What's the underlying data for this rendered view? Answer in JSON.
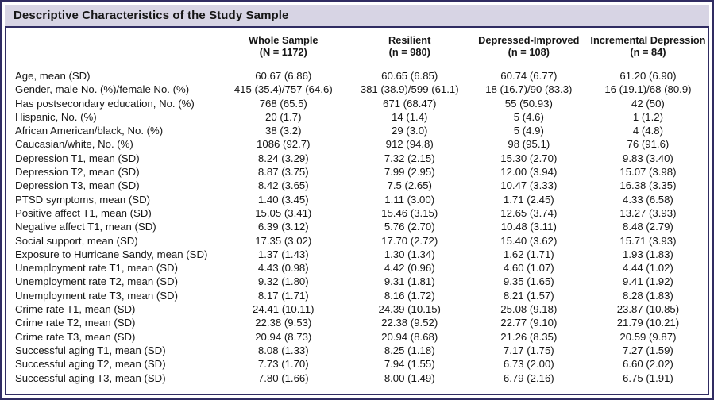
{
  "title": "Descriptive Characteristics of the Study Sample",
  "colors": {
    "border": "#302c62",
    "title_bg": "#d7d4e4",
    "text": "#161616"
  },
  "table": {
    "columns": [
      {
        "label": "Whole Sample",
        "sub": "(N = 1172)"
      },
      {
        "label": "Resilient",
        "sub": "(n = 980)"
      },
      {
        "label": "Depressed-Improved",
        "sub": "(n = 108)"
      },
      {
        "label": "Incremental Depression",
        "sub": "(n = 84)"
      }
    ],
    "rows": [
      {
        "label": "Age, mean (SD)",
        "values": [
          "60.67 (6.86)",
          "60.65 (6.85)",
          "60.74 (6.77)",
          "61.20 (6.90)"
        ]
      },
      {
        "label": "Gender, male No. (%)/female No. (%)",
        "values": [
          "415 (35.4)/757 (64.6)",
          "381 (38.9)/599 (61.1)",
          "18 (16.7)/90 (83.3)",
          "16 (19.1)/68 (80.9)"
        ]
      },
      {
        "label": "Has postsecondary education, No. (%)",
        "values": [
          "768 (65.5)",
          "671 (68.47)",
          "55 (50.93)",
          "42 (50)"
        ]
      },
      {
        "label": "Hispanic, No. (%)",
        "values": [
          "20 (1.7)",
          "14 (1.4)",
          "5 (4.6)",
          "1 (1.2)"
        ]
      },
      {
        "label": "African American/black, No. (%)",
        "values": [
          "38 (3.2)",
          "29 (3.0)",
          "5 (4.9)",
          "4 (4.8)"
        ]
      },
      {
        "label": "Caucasian/white, No. (%)",
        "values": [
          "1086 (92.7)",
          "912 (94.8)",
          "98 (95.1)",
          "76 (91.6)"
        ]
      },
      {
        "label": "Depression T1, mean (SD)",
        "values": [
          "8.24 (3.29)",
          "7.32 (2.15)",
          "15.30 (2.70)",
          "9.83 (3.40)"
        ]
      },
      {
        "label": "Depression T2, mean (SD)",
        "values": [
          "8.87 (3.75)",
          "7.99 (2.95)",
          "12.00 (3.94)",
          "15.07 (3.98)"
        ]
      },
      {
        "label": "Depression T3, mean (SD)",
        "values": [
          "8.42 (3.65)",
          "7.5 (2.65)",
          "10.47 (3.33)",
          "16.38 (3.35)"
        ]
      },
      {
        "label": "PTSD symptoms, mean (SD)",
        "values": [
          "1.40 (3.45)",
          "1.11 (3.00)",
          "1.71 (2.45)",
          "4.33 (6.58)"
        ]
      },
      {
        "label": "Positive affect T1, mean (SD)",
        "values": [
          "15.05 (3.41)",
          "15.46 (3.15)",
          "12.65 (3.74)",
          "13.27 (3.93)"
        ]
      },
      {
        "label": "Negative affect T1, mean (SD)",
        "values": [
          "6.39 (3.12)",
          "5.76 (2.70)",
          "10.48 (3.11)",
          "8.48 (2.79)"
        ]
      },
      {
        "label": "Social support, mean (SD)",
        "values": [
          "17.35 (3.02)",
          "17.70 (2.72)",
          "15.40 (3.62)",
          "15.71 (3.93)"
        ]
      },
      {
        "label": "Exposure to Hurricane Sandy, mean (SD)",
        "values": [
          "1.37 (1.43)",
          "1.30 (1.34)",
          "1.62 (1.71)",
          "1.93 (1.83)"
        ]
      },
      {
        "label": "Unemployment rate T1, mean (SD)",
        "values": [
          "4.43 (0.98)",
          "4.42 (0.96)",
          "4.60 (1.07)",
          "4.44 (1.02)"
        ]
      },
      {
        "label": "Unemployment rate T2, mean (SD)",
        "values": [
          "9.32 (1.80)",
          "9.31 (1.81)",
          "9.35 (1.65)",
          "9.41 (1.92)"
        ]
      },
      {
        "label": "Unemployment rate T3, mean (SD)",
        "values": [
          "8.17 (1.71)",
          "8.16 (1.72)",
          "8.21 (1.57)",
          "8.28 (1.83)"
        ]
      },
      {
        "label": "Crime rate T1, mean (SD)",
        "values": [
          "24.41 (10.11)",
          "24.39 (10.15)",
          "25.08 (9.18)",
          "23.87 (10.85)"
        ]
      },
      {
        "label": "Crime rate T2, mean (SD)",
        "values": [
          "22.38 (9.53)",
          "22.38 (9.52)",
          "22.77 (9.10)",
          "21.79 (10.21)"
        ]
      },
      {
        "label": "Crime rate T3, mean (SD)",
        "values": [
          "20.94 (8.73)",
          "20.94 (8.68)",
          "21.26 (8.35)",
          "20.59 (9.87)"
        ]
      },
      {
        "label": "Successful aging T1, mean (SD)",
        "values": [
          "8.08 (1.33)",
          "8.25 (1.18)",
          "7.17 (1.75)",
          "7.27 (1.59)"
        ]
      },
      {
        "label": "Successful aging T2, mean (SD)",
        "values": [
          "7.73 (1.70)",
          "7.94 (1.55)",
          "6.73 (2.00)",
          "6.60 (2.02)"
        ]
      },
      {
        "label": "Successful aging T3, mean (SD)",
        "values": [
          "7.80 (1.66)",
          "8.00 (1.49)",
          "6.79 (2.16)",
          "6.75 (1.91)"
        ]
      }
    ]
  }
}
